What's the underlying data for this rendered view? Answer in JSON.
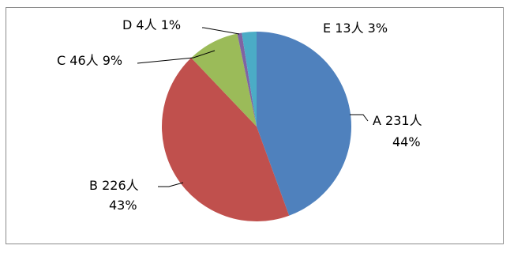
{
  "chart_data": {
    "type": "pie",
    "slices": [
      {
        "category": "A",
        "count_label": "231人",
        "value": 231,
        "percent_label": "44%",
        "color": "#4F81BD"
      },
      {
        "category": "B",
        "count_label": "226人",
        "value": 226,
        "percent_label": "43%",
        "color": "#C0504D"
      },
      {
        "category": "C",
        "count_label": "46人",
        "value": 46,
        "percent_label": "9%",
        "color": "#9BBB59"
      },
      {
        "category": "D",
        "count_label": "4人",
        "value": 4,
        "percent_label": "1%",
        "color": "#8064A2"
      },
      {
        "category": "E",
        "count_label": "13人",
        "value": 13,
        "percent_label": "3%",
        "color": "#4BACC6"
      }
    ],
    "start_angle": "12 o'clock",
    "direction": "clockwise",
    "legend": "none"
  }
}
